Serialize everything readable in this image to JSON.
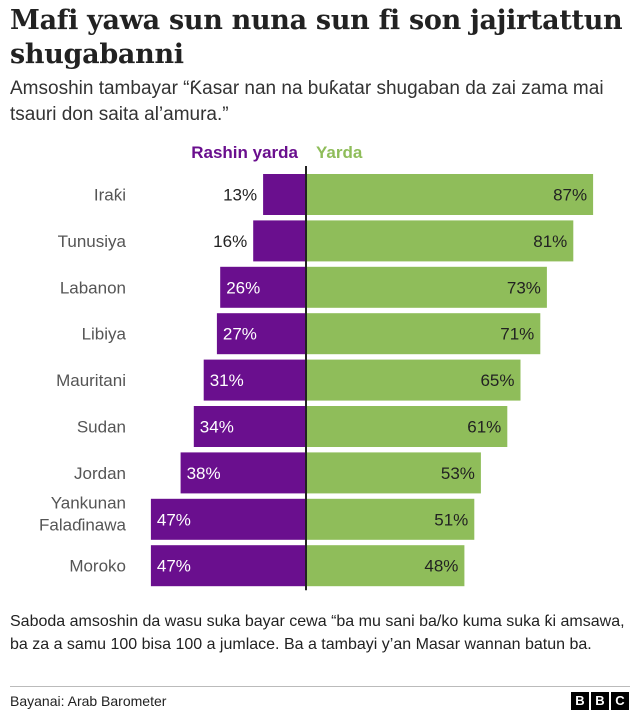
{
  "title": "Mafi yawa sun nuna sun fi son jajirtattun shugabanni",
  "subtitle": "Amsoshin tambayar “Ƙasar nan na buƙatar shugaban da zai zama mai tsauri don saita al’amura.”",
  "footnote": "Saboda amsoshin da wasu suka bayar cewa “ba mu sani ba/ko kuma suka ƙi amsawa, ba za a samu 100 bisa 100 a jumlace. Ba a tambayi y’an Masar wannan batun ba.",
  "source": "Bayanai: Arab Barometer",
  "logo": [
    "B",
    "B",
    "C"
  ],
  "colors": {
    "disagree": "#6a0f8e",
    "agree": "#8fbd5a",
    "axis": "#222222"
  },
  "chart_data": {
    "type": "bar",
    "orientation": "horizontal-diverging",
    "categories": [
      "Iraƙi",
      "Tunusiya",
      "Labanon",
      "Libiya",
      "Mauritani",
      "Sudan",
      "Jordan",
      "Yankunan Falaɗinawa",
      "Moroko"
    ],
    "series": [
      {
        "name": "Rashin yarda",
        "values": [
          13,
          16,
          26,
          27,
          31,
          34,
          38,
          47,
          47
        ],
        "color": "#6a0f8e",
        "side": "left"
      },
      {
        "name": "Yarda",
        "values": [
          87,
          81,
          73,
          71,
          65,
          61,
          53,
          51,
          48
        ],
        "color": "#8fbd5a",
        "side": "right"
      }
    ],
    "unit": "%",
    "xlim": [
      0,
      100
    ]
  }
}
